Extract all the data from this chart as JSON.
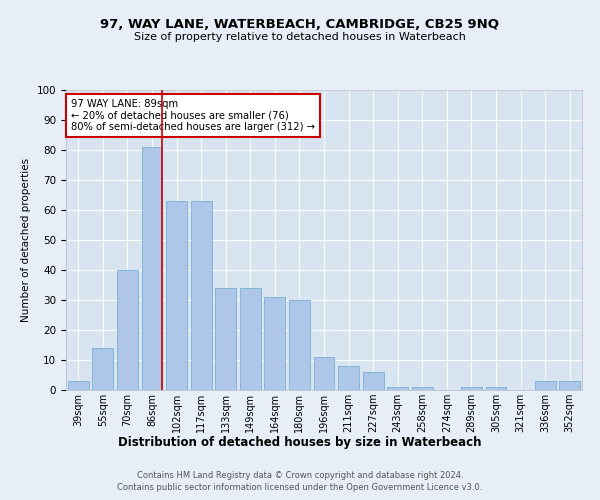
{
  "title": "97, WAY LANE, WATERBEACH, CAMBRIDGE, CB25 9NQ",
  "subtitle": "Size of property relative to detached houses in Waterbeach",
  "xlabel": "Distribution of detached houses by size in Waterbeach",
  "ylabel": "Number of detached properties",
  "categories": [
    "39sqm",
    "55sqm",
    "70sqm",
    "86sqm",
    "102sqm",
    "117sqm",
    "133sqm",
    "149sqm",
    "164sqm",
    "180sqm",
    "196sqm",
    "211sqm",
    "227sqm",
    "243sqm",
    "258sqm",
    "274sqm",
    "289sqm",
    "305sqm",
    "321sqm",
    "336sqm",
    "352sqm"
  ],
  "values": [
    3,
    14,
    40,
    81,
    63,
    63,
    34,
    34,
    31,
    30,
    11,
    8,
    6,
    1,
    1,
    0,
    1,
    1,
    0,
    3,
    3
  ],
  "bar_color": "#aec6e8",
  "bar_edge_color": "#7aafd4",
  "highlight_bar_index": 3,
  "highlight_color": "#cc0000",
  "annotation_text": "97 WAY LANE: 89sqm\n← 20% of detached houses are smaller (76)\n80% of semi-detached houses are larger (312) →",
  "annotation_box_color": "#ffffff",
  "annotation_box_edge_color": "#cc0000",
  "ylim": [
    0,
    100
  ],
  "yticks": [
    0,
    10,
    20,
    30,
    40,
    50,
    60,
    70,
    80,
    90,
    100
  ],
  "background_color": "#e8eef7",
  "plot_background_color": "#d8e4f0",
  "grid_color": "#ffffff",
  "footer_line1": "Contains HM Land Registry data © Crown copyright and database right 2024.",
  "footer_line2": "Contains public sector information licensed under the Open Government Licence v3.0."
}
